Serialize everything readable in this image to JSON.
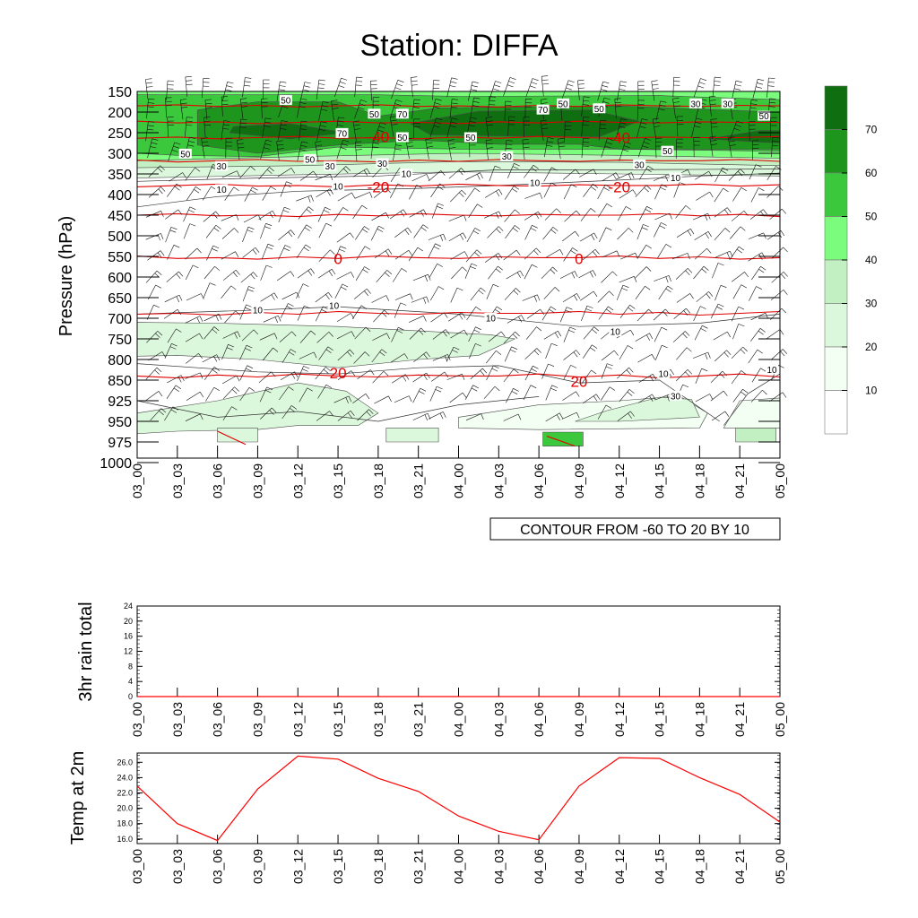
{
  "chart_data": [
    {
      "type": "contour",
      "title": "Station: DIFFA",
      "ylabel": "Pressure (hPa)",
      "time_labels": [
        "03_00",
        "03_03",
        "03_06",
        "03_09",
        "03_12",
        "03_15",
        "03_18",
        "03_21",
        "04_00",
        "04_03",
        "04_06",
        "04_09",
        "04_12",
        "04_15",
        "04_18",
        "04_21",
        "05_00"
      ],
      "pressure_levels": [
        150,
        200,
        250,
        300,
        350,
        400,
        450,
        500,
        550,
        600,
        650,
        700,
        750,
        800,
        850,
        925,
        950,
        975,
        1000
      ],
      "fill_variable": "wind speed",
      "fill_levels": [
        10,
        20,
        30,
        40,
        50,
        60,
        70
      ],
      "fill_colors": [
        "#ffffff",
        "#f2fff2",
        "#dcf8dc",
        "#c2f0c2",
        "#7cfc7c",
        "#3cc83c",
        "#1e961e",
        "#0f6e0f"
      ],
      "temperature_contour_info": "CONTOUR FROM -60 TO 20 BY 10",
      "temperature_contours": [
        {
          "value": -60,
          "pressure": 185
        },
        {
          "value": -50,
          "pressure": 225
        },
        {
          "value": -40,
          "label": "-40",
          "pressure": 262
        },
        {
          "value": -30,
          "pressure": 318
        },
        {
          "value": -20,
          "label": "-20",
          "pressure": 378
        },
        {
          "value": -10,
          "pressure": 450
        },
        {
          "value": 0,
          "label": "0",
          "pressure": 553
        },
        {
          "value": 10,
          "pressure": 688
        },
        {
          "value": 20,
          "label": "20",
          "pressure": 840
        }
      ],
      "temperature_labels": [
        {
          "text": "-40",
          "t": 6,
          "p": 260
        },
        {
          "text": "-40",
          "t": 12,
          "p": 262
        },
        {
          "text": "-20",
          "t": 6,
          "p": 382
        },
        {
          "text": "-20",
          "t": 12,
          "p": 382
        },
        {
          "text": "0",
          "t": 5,
          "p": 555
        },
        {
          "text": "0",
          "t": 11,
          "p": 555
        },
        {
          "text": "20",
          "t": 5,
          "p": 833
        },
        {
          "text": "20",
          "t": 11,
          "p": 855
        }
      ],
      "speed_contour_labels": [
        {
          "text": "50",
          "t": 3.7,
          "p": 172
        },
        {
          "text": "50",
          "t": 5.9,
          "p": 205
        },
        {
          "text": "70",
          "t": 6.6,
          "p": 205
        },
        {
          "text": "70",
          "t": 5.1,
          "p": 252
        },
        {
          "text": "50",
          "t": 6.6,
          "p": 262
        },
        {
          "text": "50",
          "t": 8.3,
          "p": 262
        },
        {
          "text": "70",
          "t": 10.1,
          "p": 195
        },
        {
          "text": "50",
          "t": 10.6,
          "p": 180
        },
        {
          "text": "50",
          "t": 11.5,
          "p": 192
        },
        {
          "text": "30",
          "t": 13.9,
          "p": 180
        },
        {
          "text": "30",
          "t": 14.7,
          "p": 180
        },
        {
          "text": "50",
          "t": 15.6,
          "p": 210
        },
        {
          "text": "50",
          "t": 1.2,
          "p": 302
        },
        {
          "text": "50",
          "t": 4.3,
          "p": 315
        },
        {
          "text": "30",
          "t": 2.1,
          "p": 332
        },
        {
          "text": "30",
          "t": 4.8,
          "p": 332
        },
        {
          "text": "30",
          "t": 6.1,
          "p": 325
        },
        {
          "text": "30",
          "t": 9.2,
          "p": 308
        },
        {
          "text": "30",
          "t": 12.5,
          "p": 328
        },
        {
          "text": "50",
          "t": 13.2,
          "p": 295
        },
        {
          "text": "10",
          "t": 6.7,
          "p": 350
        },
        {
          "text": "10",
          "t": 2.1,
          "p": 388
        },
        {
          "text": "10",
          "t": 5.0,
          "p": 380
        },
        {
          "text": "10",
          "t": 9.9,
          "p": 372
        },
        {
          "text": "10",
          "t": 13.4,
          "p": 360
        },
        {
          "text": "10",
          "t": 3.0,
          "p": 680
        },
        {
          "text": "10",
          "t": 4.9,
          "p": 670
        },
        {
          "text": "10",
          "t": 8.8,
          "p": 700
        },
        {
          "text": "10",
          "t": 11.9,
          "p": 733
        },
        {
          "text": "10",
          "t": 13.1,
          "p": 835
        },
        {
          "text": "30",
          "t": 13.4,
          "p": 908
        },
        {
          "text": "10",
          "t": 15.8,
          "p": 825
        }
      ]
    },
    {
      "type": "line",
      "title": "",
      "ylabel": "3hr rain total",
      "x": [
        "03_00",
        "03_03",
        "03_06",
        "03_09",
        "03_12",
        "03_15",
        "03_18",
        "03_21",
        "04_00",
        "04_03",
        "04_06",
        "04_09",
        "04_12",
        "04_15",
        "04_18",
        "04_21",
        "05_00"
      ],
      "ylim": [
        0,
        24
      ],
      "yticks": [
        0,
        4,
        8,
        12,
        16,
        20,
        24
      ],
      "values": [
        0,
        0,
        0,
        0,
        0,
        0,
        0,
        0,
        0,
        0,
        0,
        0,
        0,
        0,
        0,
        0,
        0
      ],
      "series_color": "#ff0000"
    },
    {
      "type": "line",
      "title": "",
      "ylabel": "Temp at 2m",
      "x": [
        "03_00",
        "03_03",
        "03_06",
        "03_09",
        "03_12",
        "03_15",
        "03_18",
        "03_21",
        "04_00",
        "04_03",
        "04_06",
        "04_09",
        "04_12",
        "04_15",
        "04_18",
        "04_21",
        "05_00"
      ],
      "ylim": [
        15.4,
        27.2
      ],
      "yticks": [
        "16.0",
        "18.0",
        "20.0",
        "22.0",
        "24.0",
        "26.0"
      ],
      "values": [
        22.9,
        18.0,
        15.8,
        22.5,
        26.8,
        26.4,
        23.9,
        22.2,
        19.0,
        17.0,
        15.9,
        22.9,
        26.6,
        26.5,
        24.0,
        21.8,
        18.2
      ],
      "series_color": "#ff0000"
    }
  ]
}
